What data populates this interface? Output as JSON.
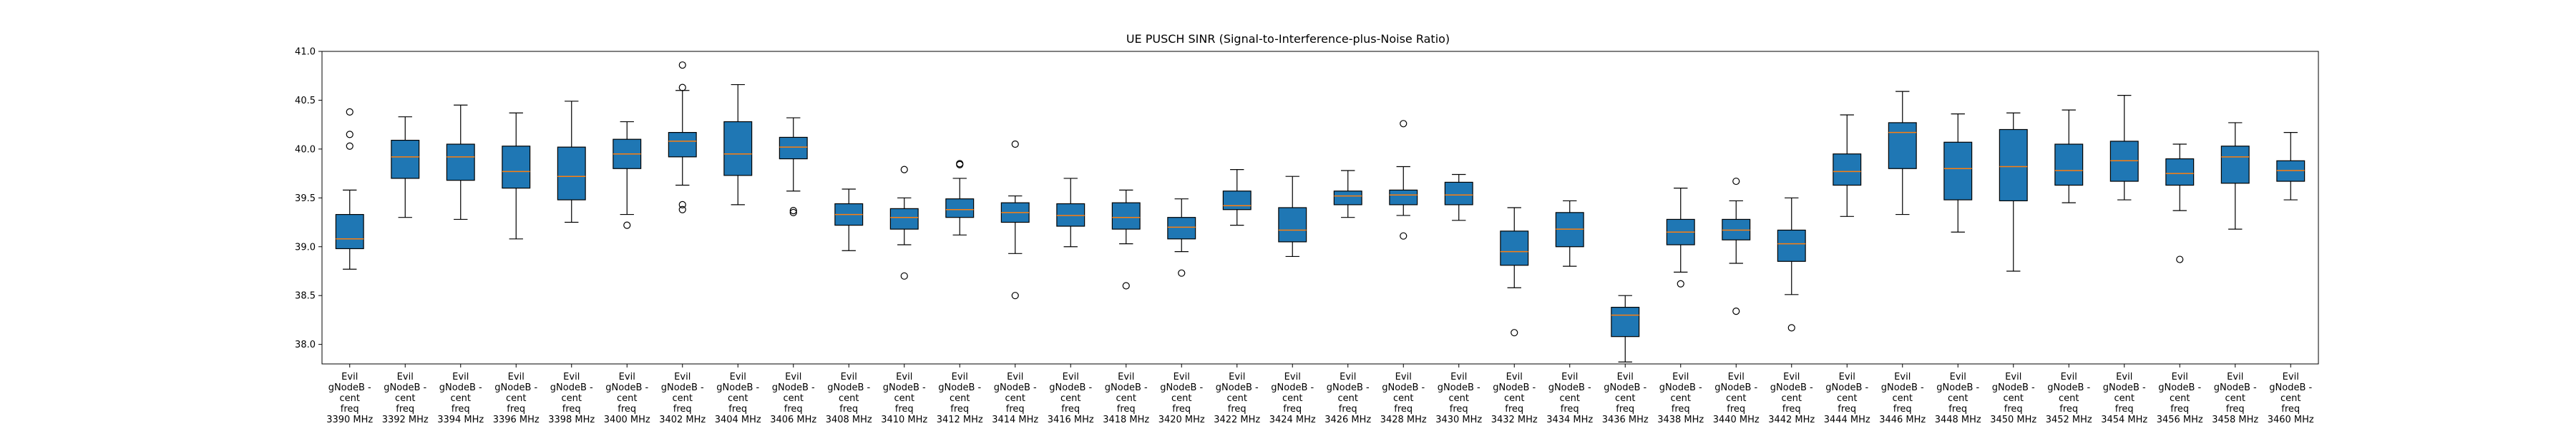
{
  "chart_data": {
    "type": "box",
    "title": "UE PUSCH SINR (Signal-to-Interference-plus-Noise Ratio)",
    "xlabel": "",
    "ylabel": "",
    "ylim": [
      37.8,
      41.0
    ],
    "yticks": [
      38.0,
      38.5,
      39.0,
      39.5,
      40.0,
      40.5,
      41.0
    ],
    "ytick_labels": [
      "38.0",
      "38.5",
      "39.0",
      "39.5",
      "40.0",
      "40.5",
      "41.0"
    ],
    "grid": false,
    "colors": {
      "box_fill": "#1f77b4",
      "median": "#ff7f0e",
      "line": "#000000"
    },
    "categories": [
      {
        "lines": [
          "Evil",
          "gNodeB -",
          "cent",
          "freq",
          "3390 MHz"
        ],
        "min": 38.77,
        "q1": 38.98,
        "median": 39.08,
        "q3": 39.33,
        "max": 39.58,
        "outliers": [
          40.03,
          40.15,
          40.38
        ]
      },
      {
        "lines": [
          "Evil",
          "gNodeB -",
          "cent",
          "freq",
          "3392 MHz"
        ],
        "min": 39.3,
        "q1": 39.7,
        "median": 39.92,
        "q3": 40.09,
        "max": 40.33,
        "outliers": []
      },
      {
        "lines": [
          "Evil",
          "gNodeB -",
          "cent",
          "freq",
          "3394 MHz"
        ],
        "min": 39.28,
        "q1": 39.68,
        "median": 39.92,
        "q3": 40.05,
        "max": 40.45,
        "outliers": []
      },
      {
        "lines": [
          "Evil",
          "gNodeB -",
          "cent",
          "freq",
          "3396 MHz"
        ],
        "min": 39.08,
        "q1": 39.6,
        "median": 39.77,
        "q3": 40.03,
        "max": 40.37,
        "outliers": []
      },
      {
        "lines": [
          "Evil",
          "gNodeB -",
          "cent",
          "freq",
          "3398 MHz"
        ],
        "min": 39.25,
        "q1": 39.48,
        "median": 39.72,
        "q3": 40.02,
        "max": 40.49,
        "outliers": []
      },
      {
        "lines": [
          "Evil",
          "gNodeB -",
          "cent",
          "freq",
          "3400 MHz"
        ],
        "min": 39.33,
        "q1": 39.8,
        "median": 39.95,
        "q3": 40.1,
        "max": 40.28,
        "outliers": [
          39.22
        ]
      },
      {
        "lines": [
          "Evil",
          "gNodeB -",
          "cent",
          "freq",
          "3402 MHz"
        ],
        "min": 39.63,
        "q1": 39.92,
        "median": 40.08,
        "q3": 40.17,
        "max": 40.6,
        "outliers": [
          39.38,
          39.43,
          40.63,
          40.86
        ]
      },
      {
        "lines": [
          "Evil",
          "gNodeB -",
          "cent",
          "freq",
          "3404 MHz"
        ],
        "min": 39.43,
        "q1": 39.73,
        "median": 39.95,
        "q3": 40.28,
        "max": 40.66,
        "outliers": []
      },
      {
        "lines": [
          "Evil",
          "gNodeB -",
          "cent",
          "freq",
          "3406 MHz"
        ],
        "min": 39.57,
        "q1": 39.9,
        "median": 40.02,
        "q3": 40.12,
        "max": 40.32,
        "outliers": [
          39.35,
          39.37
        ]
      },
      {
        "lines": [
          "Evil",
          "gNodeB -",
          "cent",
          "freq",
          "3408 MHz"
        ],
        "min": 38.96,
        "q1": 39.22,
        "median": 39.33,
        "q3": 39.44,
        "max": 39.59,
        "outliers": []
      },
      {
        "lines": [
          "Evil",
          "gNodeB -",
          "cent",
          "freq",
          "3410 MHz"
        ],
        "min": 39.02,
        "q1": 39.18,
        "median": 39.3,
        "q3": 39.39,
        "max": 39.5,
        "outliers": [
          38.7,
          39.79
        ]
      },
      {
        "lines": [
          "Evil",
          "gNodeB -",
          "cent",
          "freq",
          "3412 MHz"
        ],
        "min": 39.12,
        "q1": 39.3,
        "median": 39.38,
        "q3": 39.49,
        "max": 39.7,
        "outliers": [
          39.84,
          39.85
        ]
      },
      {
        "lines": [
          "Evil",
          "gNodeB -",
          "cent",
          "freq",
          "3414 MHz"
        ],
        "min": 38.93,
        "q1": 39.25,
        "median": 39.35,
        "q3": 39.45,
        "max": 39.52,
        "outliers": [
          38.5,
          40.05
        ]
      },
      {
        "lines": [
          "Evil",
          "gNodeB -",
          "cent",
          "freq",
          "3416 MHz"
        ],
        "min": 39.0,
        "q1": 39.21,
        "median": 39.32,
        "q3": 39.44,
        "max": 39.7,
        "outliers": []
      },
      {
        "lines": [
          "Evil",
          "gNodeB -",
          "cent",
          "freq",
          "3418 MHz"
        ],
        "min": 39.03,
        "q1": 39.18,
        "median": 39.3,
        "q3": 39.45,
        "max": 39.58,
        "outliers": [
          38.6
        ]
      },
      {
        "lines": [
          "Evil",
          "gNodeB -",
          "cent",
          "freq",
          "3420 MHz"
        ],
        "min": 38.95,
        "q1": 39.08,
        "median": 39.2,
        "q3": 39.3,
        "max": 39.49,
        "outliers": [
          38.73
        ]
      },
      {
        "lines": [
          "Evil",
          "gNodeB -",
          "cent",
          "freq",
          "3422 MHz"
        ],
        "min": 39.22,
        "q1": 39.38,
        "median": 39.42,
        "q3": 39.57,
        "max": 39.79,
        "outliers": []
      },
      {
        "lines": [
          "Evil",
          "gNodeB -",
          "cent",
          "freq",
          "3424 MHz"
        ],
        "min": 38.9,
        "q1": 39.05,
        "median": 39.17,
        "q3": 39.4,
        "max": 39.72,
        "outliers": []
      },
      {
        "lines": [
          "Evil",
          "gNodeB -",
          "cent",
          "freq",
          "3426 MHz"
        ],
        "min": 39.3,
        "q1": 39.43,
        "median": 39.52,
        "q3": 39.57,
        "max": 39.78,
        "outliers": []
      },
      {
        "lines": [
          "Evil",
          "gNodeB -",
          "cent",
          "freq",
          "3428 MHz"
        ],
        "min": 39.32,
        "q1": 39.43,
        "median": 39.53,
        "q3": 39.58,
        "max": 39.82,
        "outliers": [
          39.11,
          40.26
        ]
      },
      {
        "lines": [
          "Evil",
          "gNodeB -",
          "cent",
          "freq",
          "3430 MHz"
        ],
        "min": 39.27,
        "q1": 39.43,
        "median": 39.53,
        "q3": 39.66,
        "max": 39.74,
        "outliers": []
      },
      {
        "lines": [
          "Evil",
          "gNodeB -",
          "cent",
          "freq",
          "3432 MHz"
        ],
        "min": 38.58,
        "q1": 38.81,
        "median": 38.95,
        "q3": 39.16,
        "max": 39.4,
        "outliers": [
          38.12
        ]
      },
      {
        "lines": [
          "Evil",
          "gNodeB -",
          "cent",
          "freq",
          "3434 MHz"
        ],
        "min": 38.8,
        "q1": 39.0,
        "median": 39.18,
        "q3": 39.35,
        "max": 39.47,
        "outliers": []
      },
      {
        "lines": [
          "Evil",
          "gNodeB -",
          "cent",
          "freq",
          "3436 MHz"
        ],
        "min": 37.82,
        "q1": 38.08,
        "median": 38.3,
        "q3": 38.38,
        "max": 38.5,
        "outliers": []
      },
      {
        "lines": [
          "Evil",
          "gNodeB -",
          "cent",
          "freq",
          "3438 MHz"
        ],
        "min": 38.74,
        "q1": 39.02,
        "median": 39.15,
        "q3": 39.28,
        "max": 39.6,
        "outliers": [
          38.62
        ]
      },
      {
        "lines": [
          "Evil",
          "gNodeB -",
          "cent",
          "freq",
          "3440 MHz"
        ],
        "min": 38.83,
        "q1": 39.07,
        "median": 39.17,
        "q3": 39.28,
        "max": 39.47,
        "outliers": [
          38.34,
          39.67
        ]
      },
      {
        "lines": [
          "Evil",
          "gNodeB -",
          "cent",
          "freq",
          "3442 MHz"
        ],
        "min": 38.51,
        "q1": 38.85,
        "median": 39.03,
        "q3": 39.17,
        "max": 39.5,
        "outliers": [
          38.17
        ]
      },
      {
        "lines": [
          "Evil",
          "gNodeB -",
          "cent",
          "freq",
          "3444 MHz"
        ],
        "min": 39.31,
        "q1": 39.63,
        "median": 39.77,
        "q3": 39.95,
        "max": 40.35,
        "outliers": []
      },
      {
        "lines": [
          "Evil",
          "gNodeB -",
          "cent",
          "freq",
          "3446 MHz"
        ],
        "min": 39.33,
        "q1": 39.8,
        "median": 40.17,
        "q3": 40.27,
        "max": 40.59,
        "outliers": []
      },
      {
        "lines": [
          "Evil",
          "gNodeB -",
          "cent",
          "freq",
          "3448 MHz"
        ],
        "min": 39.15,
        "q1": 39.48,
        "median": 39.8,
        "q3": 40.07,
        "max": 40.36,
        "outliers": []
      },
      {
        "lines": [
          "Evil",
          "gNodeB -",
          "cent",
          "freq",
          "3450 MHz"
        ],
        "min": 38.75,
        "q1": 39.47,
        "median": 39.82,
        "q3": 40.2,
        "max": 40.37,
        "outliers": []
      },
      {
        "lines": [
          "Evil",
          "gNodeB -",
          "cent",
          "freq",
          "3452 MHz"
        ],
        "min": 39.45,
        "q1": 39.63,
        "median": 39.78,
        "q3": 40.05,
        "max": 40.4,
        "outliers": []
      },
      {
        "lines": [
          "Evil",
          "gNodeB -",
          "cent",
          "freq",
          "3454 MHz"
        ],
        "min": 39.48,
        "q1": 39.67,
        "median": 39.88,
        "q3": 40.08,
        "max": 40.55,
        "outliers": []
      },
      {
        "lines": [
          "Evil",
          "gNodeB -",
          "cent",
          "freq",
          "3456 MHz"
        ],
        "min": 39.37,
        "q1": 39.63,
        "median": 39.75,
        "q3": 39.9,
        "max": 40.05,
        "outliers": [
          38.87
        ]
      },
      {
        "lines": [
          "Evil",
          "gNodeB -",
          "cent",
          "freq",
          "3458 MHz"
        ],
        "min": 39.18,
        "q1": 39.65,
        "median": 39.92,
        "q3": 40.03,
        "max": 40.27,
        "outliers": []
      },
      {
        "lines": [
          "Evil",
          "gNodeB -",
          "cent",
          "freq",
          "3460 MHz"
        ],
        "min": 39.48,
        "q1": 39.67,
        "median": 39.78,
        "q3": 39.88,
        "max": 40.17,
        "outliers": []
      }
    ]
  }
}
